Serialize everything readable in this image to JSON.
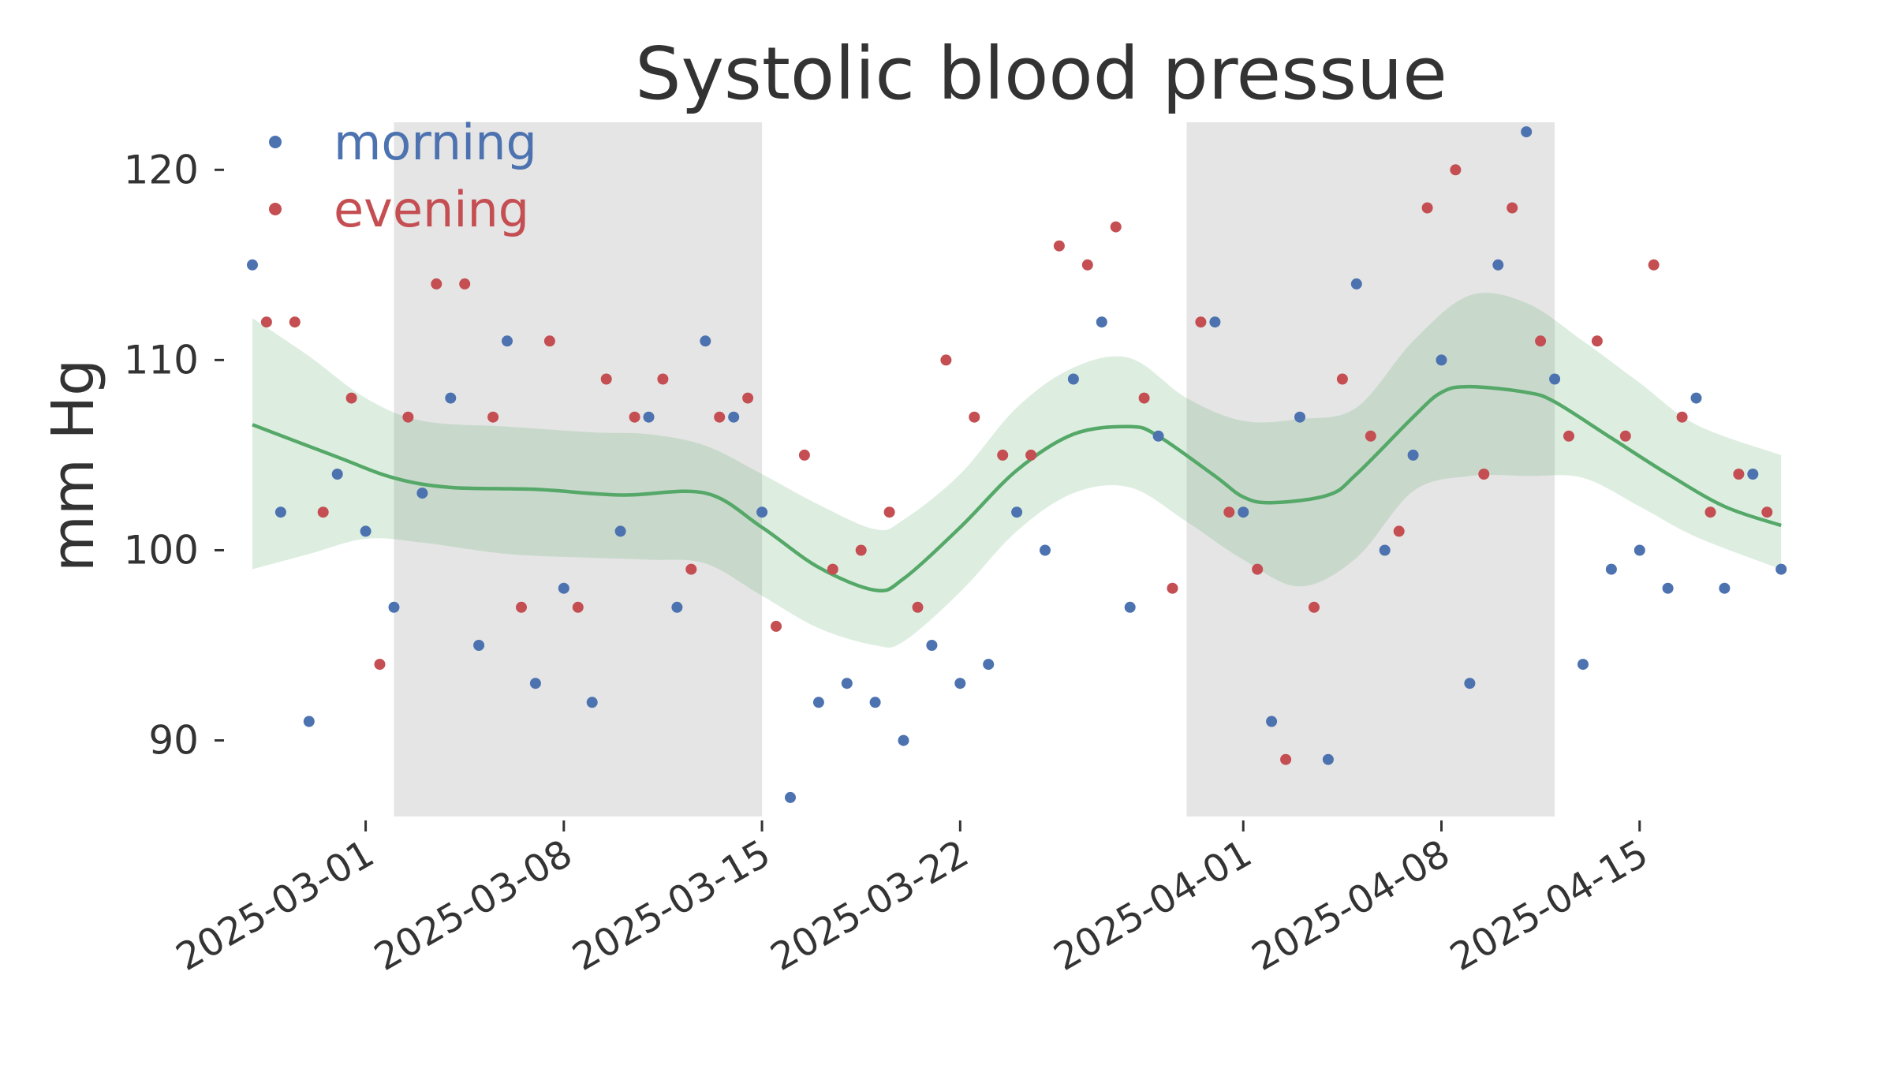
{
  "chart_data": {
    "type": "scatter",
    "title": "Systolic blood pressue",
    "xlabel": "",
    "ylabel": "mm Hg",
    "x_axis": "date",
    "xlim": [
      "2025-02-25",
      "2025-04-22"
    ],
    "ylim": [
      86,
      122.5
    ],
    "yticks": [
      90,
      100,
      110,
      120
    ],
    "xticks": [
      "2025-03-01",
      "2025-03-08",
      "2025-03-15",
      "2025-03-22",
      "2025-04-01",
      "2025-04-08",
      "2025-04-15"
    ],
    "grid": false,
    "legend": {
      "placement": "top-left",
      "entries": [
        "morning",
        "evening"
      ]
    },
    "colors": {
      "morning": "#4c72b0",
      "evening": "#c44e52",
      "trend": "#55a868",
      "band": "#cfe6d4",
      "shade": "#e5e5e5",
      "text": "#333333"
    },
    "shaded_periods": [
      {
        "start": "2025-03-02",
        "end": "2025-03-15"
      },
      {
        "start": "2025-03-30",
        "end": "2025-04-12"
      }
    ],
    "series": [
      {
        "name": "morning",
        "points": [
          [
            "2025-02-25",
            115
          ],
          [
            "2025-02-26",
            102
          ],
          [
            "2025-02-27",
            91
          ],
          [
            "2025-02-28",
            104
          ],
          [
            "2025-03-01",
            101
          ],
          [
            "2025-03-02",
            97
          ],
          [
            "2025-03-03",
            103
          ],
          [
            "2025-03-04",
            108
          ],
          [
            "2025-03-05",
            95
          ],
          [
            "2025-03-06",
            111
          ],
          [
            "2025-03-07",
            93
          ],
          [
            "2025-03-08",
            98
          ],
          [
            "2025-03-09",
            92
          ],
          [
            "2025-03-10",
            101
          ],
          [
            "2025-03-11",
            107
          ],
          [
            "2025-03-12",
            97
          ],
          [
            "2025-03-13",
            111
          ],
          [
            "2025-03-14",
            107
          ],
          [
            "2025-03-15",
            102
          ],
          [
            "2025-03-16",
            87
          ],
          [
            "2025-03-17",
            92
          ],
          [
            "2025-03-18",
            93
          ],
          [
            "2025-03-19",
            92
          ],
          [
            "2025-03-20",
            90
          ],
          [
            "2025-03-21",
            95
          ],
          [
            "2025-03-22",
            93
          ],
          [
            "2025-03-23",
            94
          ],
          [
            "2025-03-24",
            102
          ],
          [
            "2025-03-25",
            100
          ],
          [
            "2025-03-26",
            109
          ],
          [
            "2025-03-27",
            112
          ],
          [
            "2025-03-28",
            97
          ],
          [
            "2025-03-29",
            106
          ],
          [
            "2025-03-31",
            112
          ],
          [
            "2025-04-01",
            102
          ],
          [
            "2025-04-02",
            91
          ],
          [
            "2025-04-03",
            107
          ],
          [
            "2025-04-04",
            89
          ],
          [
            "2025-04-05",
            114
          ],
          [
            "2025-04-06",
            100
          ],
          [
            "2025-04-07",
            105
          ],
          [
            "2025-04-08",
            110
          ],
          [
            "2025-04-09",
            93
          ],
          [
            "2025-04-10",
            115
          ],
          [
            "2025-04-11",
            122
          ],
          [
            "2025-04-12",
            109
          ],
          [
            "2025-04-13",
            94
          ],
          [
            "2025-04-14",
            99
          ],
          [
            "2025-04-15",
            100
          ],
          [
            "2025-04-16",
            98
          ],
          [
            "2025-04-17",
            108
          ],
          [
            "2025-04-18",
            98
          ],
          [
            "2025-04-19",
            104
          ],
          [
            "2025-04-20",
            99
          ]
        ]
      },
      {
        "name": "evening",
        "points": [
          [
            "2025-02-25",
            112
          ],
          [
            "2025-02-26",
            112
          ],
          [
            "2025-02-27",
            102
          ],
          [
            "2025-02-28",
            108
          ],
          [
            "2025-03-01",
            94
          ],
          [
            "2025-03-02",
            107
          ],
          [
            "2025-03-03",
            114
          ],
          [
            "2025-03-04",
            114
          ],
          [
            "2025-03-05",
            107
          ],
          [
            "2025-03-06",
            97
          ],
          [
            "2025-03-07",
            111
          ],
          [
            "2025-03-08",
            97
          ],
          [
            "2025-03-09",
            109
          ],
          [
            "2025-03-10",
            107
          ],
          [
            "2025-03-11",
            109
          ],
          [
            "2025-03-12",
            99
          ],
          [
            "2025-03-13",
            107
          ],
          [
            "2025-03-14",
            108
          ],
          [
            "2025-03-15",
            96
          ],
          [
            "2025-03-16",
            105
          ],
          [
            "2025-03-17",
            99
          ],
          [
            "2025-03-18",
            100
          ],
          [
            "2025-03-19",
            102
          ],
          [
            "2025-03-20",
            97
          ],
          [
            "2025-03-21",
            110
          ],
          [
            "2025-03-22",
            107
          ],
          [
            "2025-03-23",
            105
          ],
          [
            "2025-03-24",
            105
          ],
          [
            "2025-03-25",
            116
          ],
          [
            "2025-03-26",
            115
          ],
          [
            "2025-03-27",
            117
          ],
          [
            "2025-03-28",
            108
          ],
          [
            "2025-03-29",
            98
          ],
          [
            "2025-03-30",
            112
          ],
          [
            "2025-03-31",
            102
          ],
          [
            "2025-04-01",
            99
          ],
          [
            "2025-04-02",
            89
          ],
          [
            "2025-04-03",
            97
          ],
          [
            "2025-04-04",
            109
          ],
          [
            "2025-04-05",
            106
          ],
          [
            "2025-04-06",
            101
          ],
          [
            "2025-04-07",
            118
          ],
          [
            "2025-04-08",
            120
          ],
          [
            "2025-04-09",
            104
          ],
          [
            "2025-04-10",
            118
          ],
          [
            "2025-04-11",
            111
          ],
          [
            "2025-04-12",
            106
          ],
          [
            "2025-04-13",
            111
          ],
          [
            "2025-04-14",
            106
          ],
          [
            "2025-04-15",
            115
          ],
          [
            "2025-04-16",
            107
          ],
          [
            "2025-04-17",
            102
          ],
          [
            "2025-04-18",
            104
          ],
          [
            "2025-04-19",
            102
          ]
        ]
      }
    ],
    "trend": [
      [
        "2025-02-25",
        106.6
      ],
      [
        "2025-02-28",
        104.9
      ],
      [
        "2025-03-02",
        103.8
      ],
      [
        "2025-03-04",
        103.3
      ],
      [
        "2025-03-07",
        103.2
      ],
      [
        "2025-03-10",
        102.9
      ],
      [
        "2025-03-13",
        103.0
      ],
      [
        "2025-03-15",
        101.2
      ],
      [
        "2025-03-17",
        99.1
      ],
      [
        "2025-03-19",
        97.9
      ],
      [
        "2025-03-20",
        98.5
      ],
      [
        "2025-03-22",
        101.2
      ],
      [
        "2025-03-24",
        104.2
      ],
      [
        "2025-03-26",
        106.1
      ],
      [
        "2025-03-28",
        106.5
      ],
      [
        "2025-03-29",
        106.0
      ],
      [
        "2025-03-31",
        103.9
      ],
      [
        "2025-04-01",
        102.8
      ],
      [
        "2025-04-02",
        102.5
      ],
      [
        "2025-04-04",
        102.9
      ],
      [
        "2025-04-05",
        104.0
      ],
      [
        "2025-04-07",
        107.0
      ],
      [
        "2025-04-08",
        108.3
      ],
      [
        "2025-04-09",
        108.6
      ],
      [
        "2025-04-11",
        108.3
      ],
      [
        "2025-04-12",
        107.8
      ],
      [
        "2025-04-14",
        105.9
      ],
      [
        "2025-04-16",
        104.0
      ],
      [
        "2025-04-18",
        102.3
      ],
      [
        "2025-04-20",
        101.3
      ]
    ],
    "trend_band": [
      [
        "2025-02-25",
        99.0,
        112.2
      ],
      [
        "2025-02-27",
        99.8,
        110.2
      ],
      [
        "2025-03-01",
        100.6,
        108.0
      ],
      [
        "2025-03-03",
        100.4,
        106.8
      ],
      [
        "2025-03-06",
        99.8,
        106.5
      ],
      [
        "2025-03-09",
        99.6,
        106.2
      ],
      [
        "2025-03-11",
        99.5,
        106.1
      ],
      [
        "2025-03-13",
        99.3,
        105.5
      ],
      [
        "2025-03-15",
        97.6,
        104.0
      ],
      [
        "2025-03-17",
        95.9,
        102.4
      ],
      [
        "2025-03-19",
        95.0,
        101.1
      ],
      [
        "2025-03-20",
        95.2,
        101.6
      ],
      [
        "2025-03-22",
        97.8,
        104.0
      ],
      [
        "2025-03-24",
        101.0,
        107.5
      ],
      [
        "2025-03-26",
        103.0,
        109.6
      ],
      [
        "2025-03-28",
        103.3,
        110.1
      ],
      [
        "2025-03-30",
        101.5,
        108.0
      ],
      [
        "2025-04-01",
        99.5,
        106.8
      ],
      [
        "2025-04-03",
        98.1,
        106.9
      ],
      [
        "2025-04-05",
        99.6,
        107.5
      ],
      [
        "2025-04-07",
        103.1,
        111.0
      ],
      [
        "2025-04-09",
        103.9,
        113.4
      ],
      [
        "2025-04-11",
        103.9,
        113.0
      ],
      [
        "2025-04-13",
        103.8,
        111.0
      ],
      [
        "2025-04-15",
        102.3,
        108.8
      ],
      [
        "2025-04-17",
        100.7,
        106.6
      ],
      [
        "2025-04-20",
        99.0,
        105.0
      ]
    ]
  }
}
